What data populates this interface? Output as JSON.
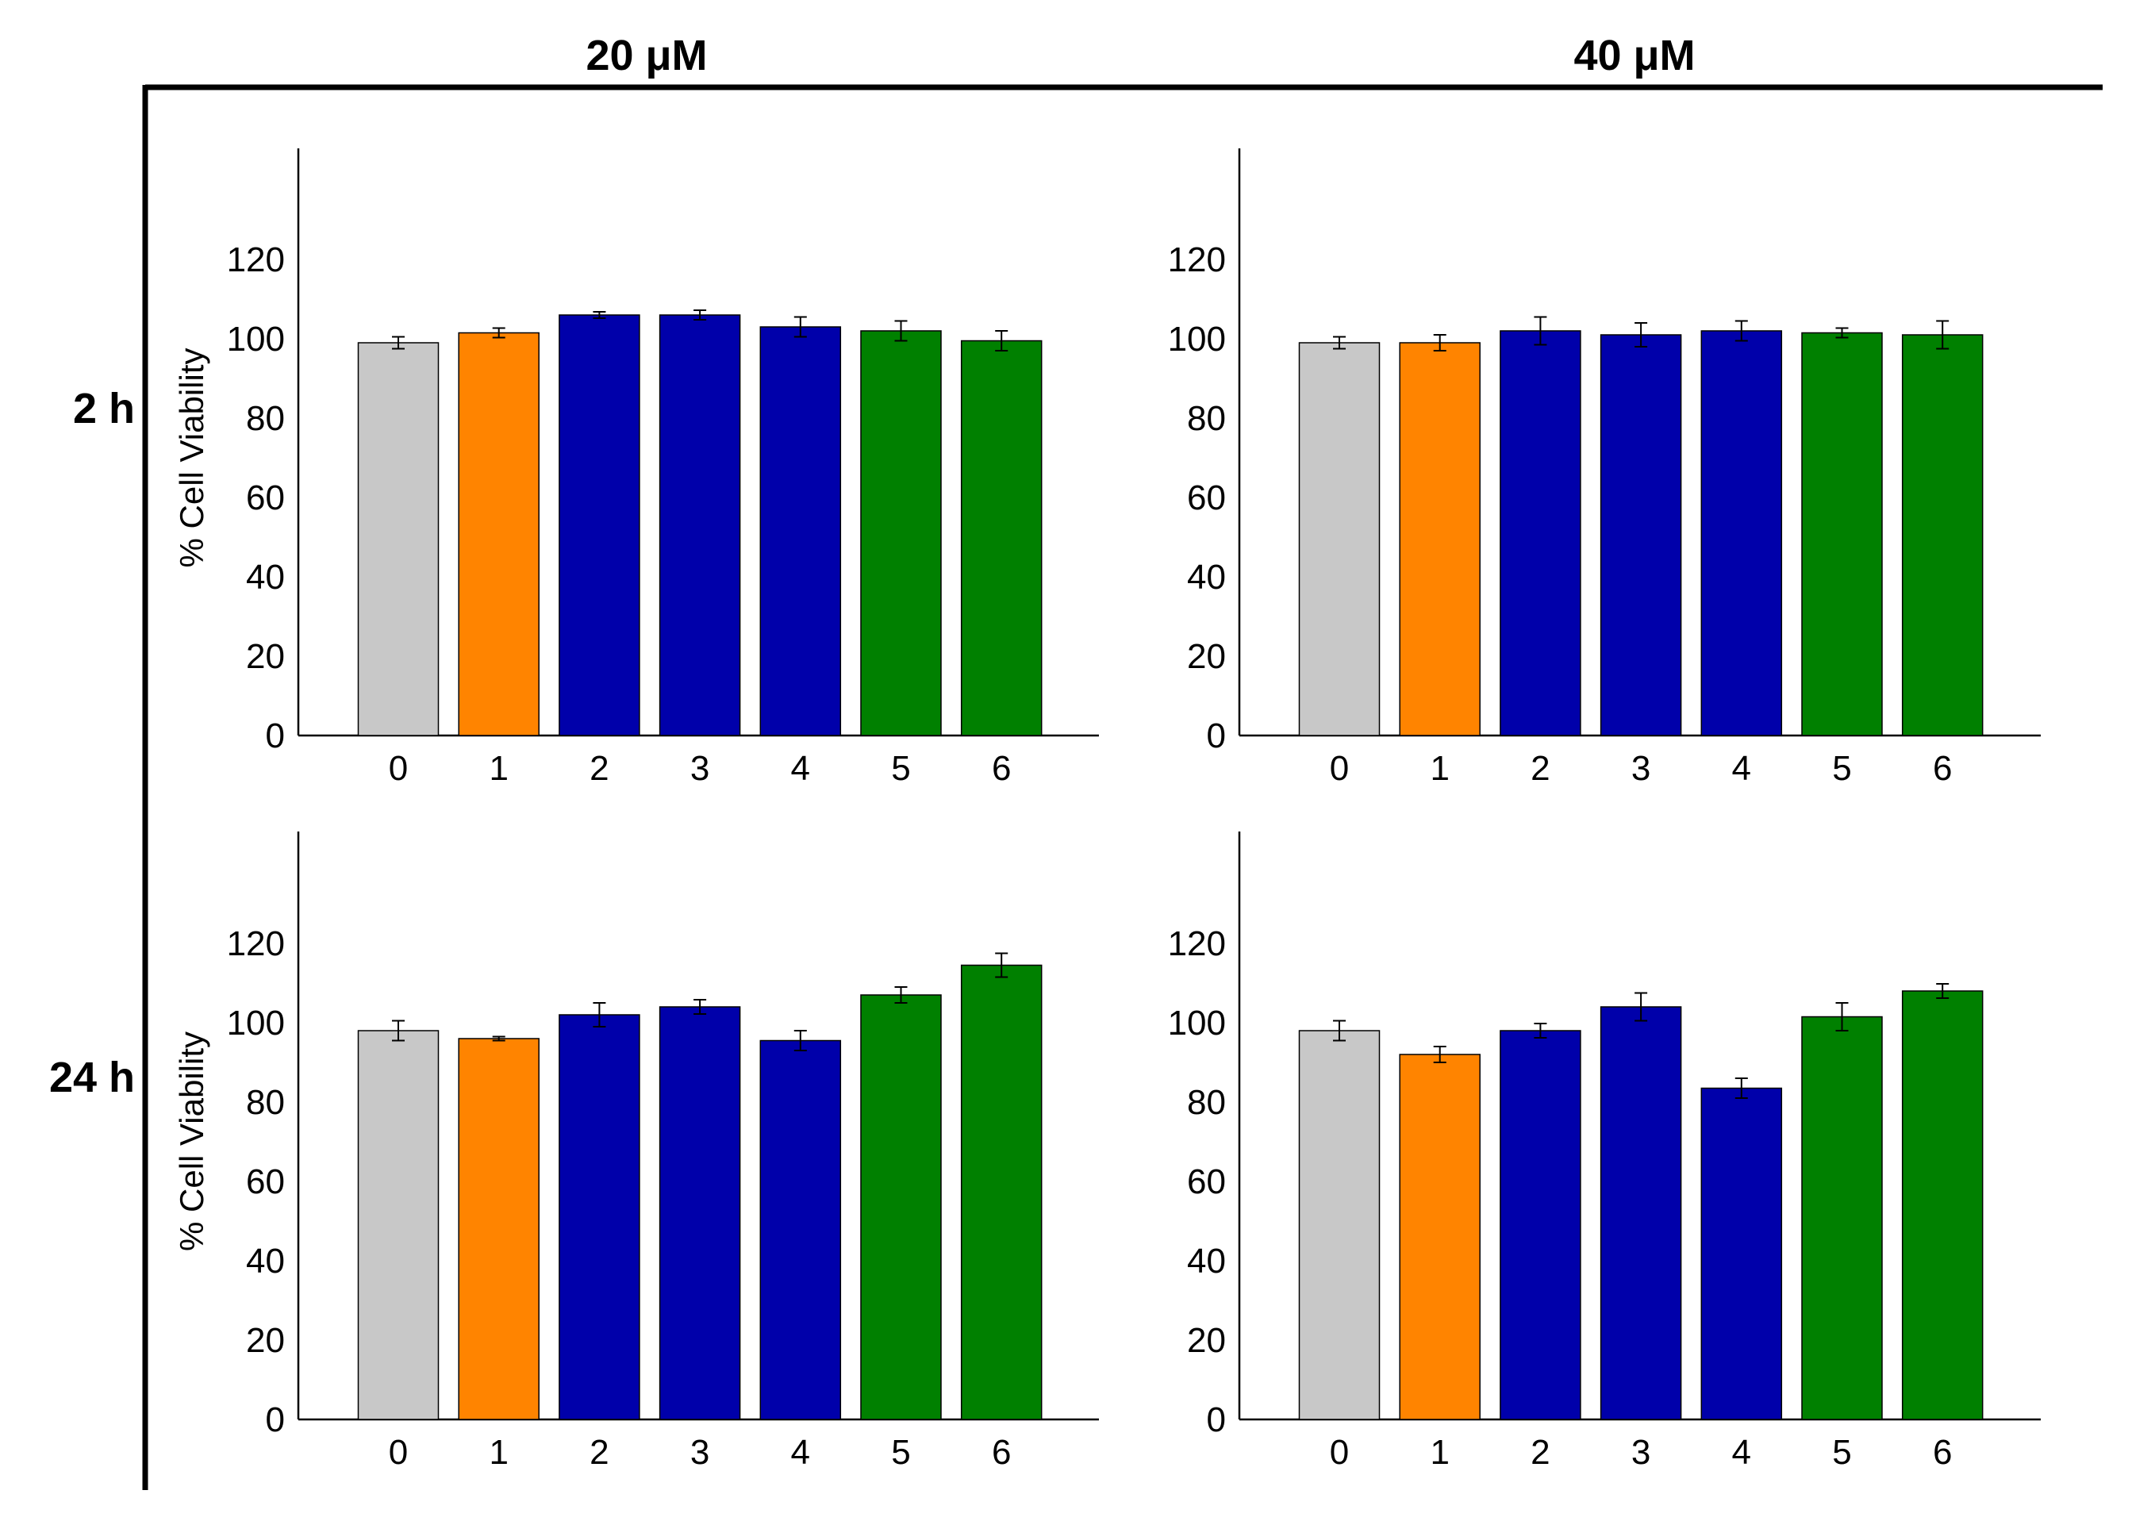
{
  "column_labels": [
    "20 μM",
    "40 μM"
  ],
  "row_labels": [
    "2 h",
    "24 h"
  ],
  "colors": {
    "control": "#c8c8c8",
    "compound_1": "#ff8400",
    "compounds_2_4": "#0000aa",
    "compounds_5_6": "#008000",
    "axis": "#000000"
  },
  "chart_data": [
    {
      "type": "bar",
      "panel": "2 h / 20 μM",
      "categories": [
        "0",
        "1",
        "2",
        "3",
        "4",
        "5",
        "6"
      ],
      "values": [
        99,
        101.5,
        106,
        106,
        103,
        102,
        99.5
      ],
      "errors": [
        1.5,
        1.2,
        0.8,
        1.2,
        2.5,
        2.5,
        2.5
      ],
      "bar_colors": [
        "#c8c8c8",
        "#ff8400",
        "#0000aa",
        "#0000aa",
        "#0000aa",
        "#008000",
        "#008000"
      ],
      "ylabel": "% Cell Viability",
      "yticks": [
        0,
        20,
        40,
        60,
        80,
        100,
        120
      ],
      "ylim": [
        0,
        120
      ]
    },
    {
      "type": "bar",
      "panel": "2 h / 40 μM",
      "categories": [
        "0",
        "1",
        "2",
        "3",
        "4",
        "5",
        "6"
      ],
      "values": [
        99,
        99,
        102,
        101,
        102,
        101.5,
        101
      ],
      "errors": [
        1.5,
        2,
        3.5,
        3,
        2.5,
        1.2,
        3.5
      ],
      "bar_colors": [
        "#c8c8c8",
        "#ff8400",
        "#0000aa",
        "#0000aa",
        "#0000aa",
        "#008000",
        "#008000"
      ],
      "ylabel": "",
      "yticks": [
        0,
        20,
        40,
        60,
        80,
        100,
        120
      ],
      "ylim": [
        0,
        120
      ]
    },
    {
      "type": "bar",
      "panel": "24 h / 20 μM",
      "categories": [
        "0",
        "1",
        "2",
        "3",
        "4",
        "5",
        "6"
      ],
      "values": [
        98,
        96,
        102,
        104,
        95.5,
        107,
        114.5
      ],
      "errors": [
        2.5,
        0.5,
        3,
        1.8,
        2.5,
        2,
        3
      ],
      "bar_colors": [
        "#c8c8c8",
        "#ff8400",
        "#0000aa",
        "#0000aa",
        "#0000aa",
        "#008000",
        "#008000"
      ],
      "ylabel": "% Cell Viability",
      "yticks": [
        0,
        20,
        40,
        60,
        80,
        100,
        120
      ],
      "ylim": [
        0,
        120
      ]
    },
    {
      "type": "bar",
      "panel": "24 h / 40 μM",
      "categories": [
        "0",
        "1",
        "2",
        "3",
        "4",
        "5",
        "6"
      ],
      "values": [
        98,
        92,
        98,
        104,
        83.5,
        101.5,
        108
      ],
      "errors": [
        2.5,
        2,
        1.8,
        3.5,
        2.5,
        3.5,
        1.8
      ],
      "bar_colors": [
        "#c8c8c8",
        "#ff8400",
        "#0000aa",
        "#0000aa",
        "#0000aa",
        "#008000",
        "#008000"
      ],
      "ylabel": "",
      "yticks": [
        0,
        20,
        40,
        60,
        80,
        100,
        120
      ],
      "ylim": [
        0,
        120
      ]
    }
  ]
}
